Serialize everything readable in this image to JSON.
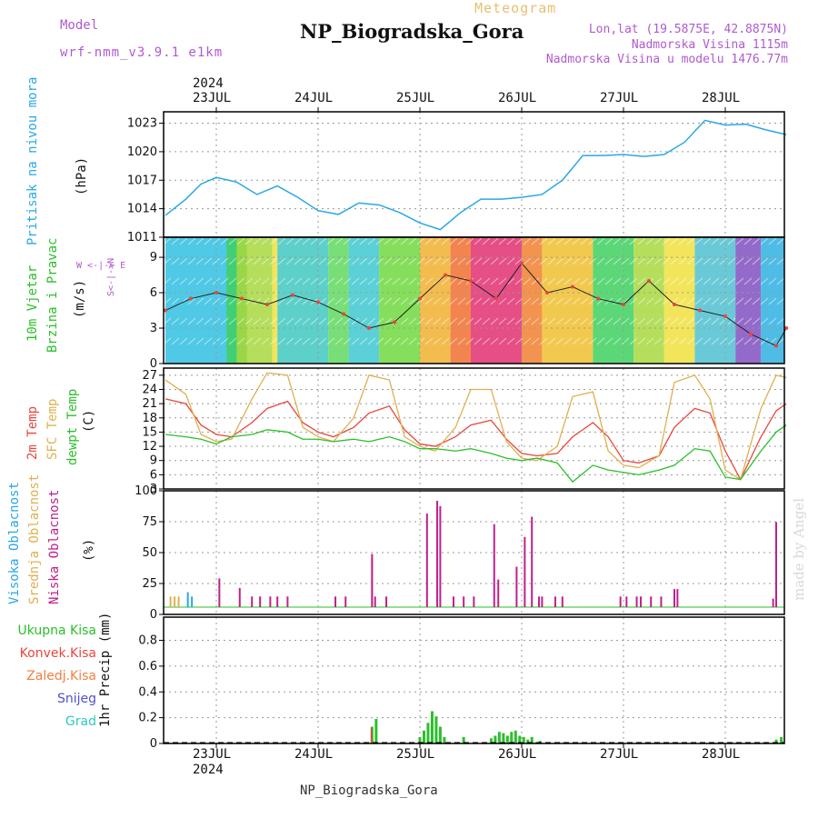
{
  "header": {
    "model_label": "Model",
    "model_version": "wrf-nmm_v3.9.1 e1km",
    "meteogram": "Meteogram",
    "station": "NP_Biogradska_Gora",
    "coords": "Lon,lat (19.5875E, 42.8875N)",
    "elevation": "Nadmorska Visina 1115m",
    "model_elevation": "Nadmorska Visina u modelu 1476.77m",
    "watermark": "made by Angel",
    "bottom_title": "NP_Biogradska_Gora"
  },
  "dates": {
    "year": "2024",
    "days": [
      "23JUL",
      "24JUL",
      "25JUL",
      "26JUL",
      "27JUL",
      "28JUL"
    ]
  },
  "colors": {
    "pressure": "#2aa7e6",
    "temp2m": "#e8463c",
    "sfc": "#e0b050",
    "dewpt": "#2ac02a",
    "high_cloud": "#2aa7e6",
    "mid_cloud": "#e0b050",
    "low_cloud": "#c0208a",
    "total_precip": "#2ac02a",
    "conv_precip": "#e8463c",
    "frozen": "#f08040",
    "snow": "#5050d0",
    "hail": "#30c8c0"
  },
  "panels": {
    "pressure": {
      "label1": "Pritisak na nivou mora",
      "unit": "(hPa)"
    },
    "wind": {
      "label1": "10m Vjetar",
      "label2": "Brzina i Pravac",
      "unit": "(m/s)",
      "compass_ew": "W <-|-> E",
      "compass_ns": "S<-|->N"
    },
    "temp": {
      "label1": "2m Temp",
      "label2": "SFC Temp",
      "label3": "dewpt Temp",
      "unit": "(C)"
    },
    "cloud": {
      "label1": "Visoka Oblacnost",
      "label2": "Srednja Oblacnost",
      "label3": "Niska Oblacnost",
      "unit": "(%)"
    },
    "precip": {
      "unit": "1hr Precip (mm)",
      "legend": [
        "Ukupna Kisa",
        "Konvek.Kisa",
        "Zaledj.Kisa",
        "Snijeg",
        "Grad"
      ]
    }
  },
  "chart_data": [
    {
      "type": "line",
      "title": "Pritisak na nivou mora",
      "ylabel": "(hPa)",
      "yticks": [
        1011,
        1014,
        1017,
        1020,
        1023
      ],
      "ylim": [
        1011,
        1024.2
      ],
      "x_days_from_23jul": [
        -0.5,
        -0.3,
        -0.15,
        0,
        0.2,
        0.4,
        0.6,
        0.8,
        1.0,
        1.2,
        1.4,
        1.6,
        1.8,
        2.0,
        2.2,
        2.4,
        2.6,
        2.8,
        3.0,
        3.2,
        3.4,
        3.6,
        3.8,
        4.0,
        4.2,
        4.4,
        4.6,
        4.8,
        5.0,
        5.2,
        5.4,
        5.6
      ],
      "series": [
        {
          "name": "Pritisak na nivou mora",
          "values": [
            1013.3,
            1015.0,
            1016.6,
            1017.3,
            1016.8,
            1015.5,
            1016.4,
            1015.2,
            1013.8,
            1013.4,
            1014.6,
            1014.4,
            1013.6,
            1012.5,
            1011.8,
            1013.6,
            1015.0,
            1015.0,
            1015.2,
            1015.5,
            1017.0,
            1019.6,
            1019.6,
            1019.7,
            1019.5,
            1019.7,
            1021.0,
            1023.3,
            1022.8,
            1022.9,
            1022.3,
            1021.8
          ]
        }
      ]
    },
    {
      "type": "line",
      "title": "10m Vjetar Brzina i Pravac",
      "ylabel": "(m/s)",
      "yticks": [
        0,
        3,
        6,
        9
      ],
      "ylim": [
        0,
        10.7
      ],
      "x_days_from_23jul": [
        -0.5,
        -0.25,
        0,
        0.25,
        0.5,
        0.75,
        1.0,
        1.25,
        1.5,
        1.75,
        2.0,
        2.25,
        2.5,
        2.75,
        3.0,
        3.25,
        3.5,
        3.75,
        4.0,
        4.25,
        4.5,
        4.75,
        5.0,
        5.25,
        5.5,
        5.6
      ],
      "series": [
        {
          "name": "10m Vjetar",
          "values": [
            4.5,
            5.5,
            6.0,
            5.5,
            5.0,
            5.8,
            5.2,
            4.2,
            3.0,
            3.5,
            5.5,
            7.5,
            7.0,
            5.5,
            8.5,
            6.0,
            6.5,
            5.5,
            5.0,
            7.0,
            5.0,
            4.5,
            4.0,
            2.5,
            1.5,
            3.0
          ]
        }
      ]
    },
    {
      "type": "line",
      "title": "2m Temp / SFC Temp / dewpt Temp",
      "ylabel": "(C)",
      "yticks": [
        3,
        6,
        9,
        12,
        15,
        18,
        21,
        24,
        27
      ],
      "ylim": [
        3,
        28.5
      ],
      "x_days_from_23jul": [
        -0.5,
        -0.3,
        -0.15,
        0,
        0.15,
        0.35,
        0.5,
        0.7,
        0.85,
        1.0,
        1.15,
        1.35,
        1.5,
        1.7,
        1.85,
        2.0,
        2.15,
        2.35,
        2.5,
        2.7,
        2.85,
        3.0,
        3.15,
        3.35,
        3.5,
        3.7,
        3.85,
        4.0,
        4.15,
        4.35,
        4.5,
        4.7,
        4.85,
        5.0,
        5.15,
        5.35,
        5.5,
        5.6
      ],
      "series": [
        {
          "name": "2m Temp",
          "values": [
            22,
            21,
            16.5,
            14.5,
            14,
            17,
            20,
            21.5,
            17,
            15,
            14,
            16,
            19,
            20.5,
            15.5,
            12.5,
            12,
            14,
            16.5,
            17.5,
            13.5,
            10.5,
            10,
            10.5,
            14,
            17,
            14,
            9,
            8.5,
            10,
            16,
            20,
            19,
            11,
            5,
            14,
            19.5,
            21
          ]
        },
        {
          "name": "SFC Temp",
          "values": [
            26,
            23,
            14.5,
            13,
            13.5,
            22,
            27.5,
            27,
            16,
            14,
            13,
            18,
            27,
            26,
            14,
            12,
            11,
            16,
            24,
            24,
            13,
            9.5,
            9,
            12,
            22.5,
            23.5,
            11,
            8,
            7.5,
            10,
            25.5,
            27,
            22,
            7,
            5,
            20,
            27,
            26.5
          ]
        },
        {
          "name": "dewpt Temp",
          "values": [
            14.5,
            14,
            13.5,
            12.5,
            14,
            14.5,
            15.5,
            15,
            13.5,
            13.5,
            13,
            13.5,
            13,
            14,
            13,
            11.5,
            11.5,
            11,
            11.5,
            10.5,
            9.5,
            9,
            9.5,
            8.5,
            4.5,
            8,
            7,
            6.5,
            6,
            7,
            8,
            11.5,
            11,
            5.5,
            5,
            11,
            15,
            16.5
          ]
        }
      ]
    },
    {
      "type": "bar",
      "title": "Visoka / Srednja / Niska Oblacnost",
      "ylabel": "(%)",
      "yticks": [
        0,
        25,
        50,
        75,
        100
      ],
      "ylim": [
        0,
        100
      ],
      "series": [
        {
          "name": "Visoka Oblacnost",
          "x": [
            -0.28,
            -0.24
          ],
          "values": [
            14,
            10
          ]
        },
        {
          "name": "Srednja Oblacnost",
          "x": [
            -0.45,
            -0.41,
            -0.37,
            1.53
          ],
          "values": [
            10,
            10,
            10,
            45
          ]
        },
        {
          "name": "Niska Oblacnost",
          "x": [
            0.03,
            0.23,
            0.35,
            0.43,
            0.53,
            0.6,
            0.7,
            1.17,
            1.27,
            1.53,
            1.56,
            1.67,
            2.07,
            2.17,
            2.2,
            2.33,
            2.43,
            2.53,
            2.73,
            2.77,
            2.95,
            3.03,
            3.1,
            3.17,
            3.2,
            3.33,
            3.4,
            3.97,
            4.03,
            4.13,
            4.17,
            4.27,
            4.37,
            4.5,
            4.53,
            5.47,
            5.5
          ],
          "values": [
            27,
            18,
            10,
            10,
            10,
            10,
            10,
            10,
            10,
            50,
            10,
            10,
            88,
            100,
            95,
            10,
            10,
            10,
            78,
            26,
            38,
            66,
            85,
            10,
            10,
            10,
            10,
            10,
            10,
            10,
            10,
            10,
            10,
            17,
            17,
            8,
            80
          ]
        }
      ]
    },
    {
      "type": "bar",
      "title": "1hr Precip",
      "ylabel": "1hr Precip (mm)",
      "yticks": [
        0,
        0.2,
        0.4,
        0.6,
        0.8
      ],
      "ylim": [
        0,
        0.98
      ],
      "series": [
        {
          "name": "Ukupna Kisa",
          "x": [
            1.53,
            1.57,
            2.0,
            2.04,
            2.08,
            2.12,
            2.16,
            2.2,
            2.24,
            2.43,
            2.7,
            2.74,
            2.78,
            2.82,
            2.86,
            2.9,
            2.94,
            2.98,
            3.02,
            3.06,
            3.1,
            3.14,
            3.18,
            5.5,
            5.55
          ],
          "values": [
            0.13,
            0.19,
            0.05,
            0.1,
            0.16,
            0.25,
            0.21,
            0.13,
            0.05,
            0.05,
            0.04,
            0.06,
            0.09,
            0.08,
            0.06,
            0.09,
            0.1,
            0.06,
            0.05,
            0.03,
            0.05,
            0.01,
            0.02,
            0.03,
            0.05
          ]
        },
        {
          "name": "Konvek.Kisa",
          "x": [
            1.53
          ],
          "values": [
            0.12
          ]
        }
      ]
    }
  ]
}
